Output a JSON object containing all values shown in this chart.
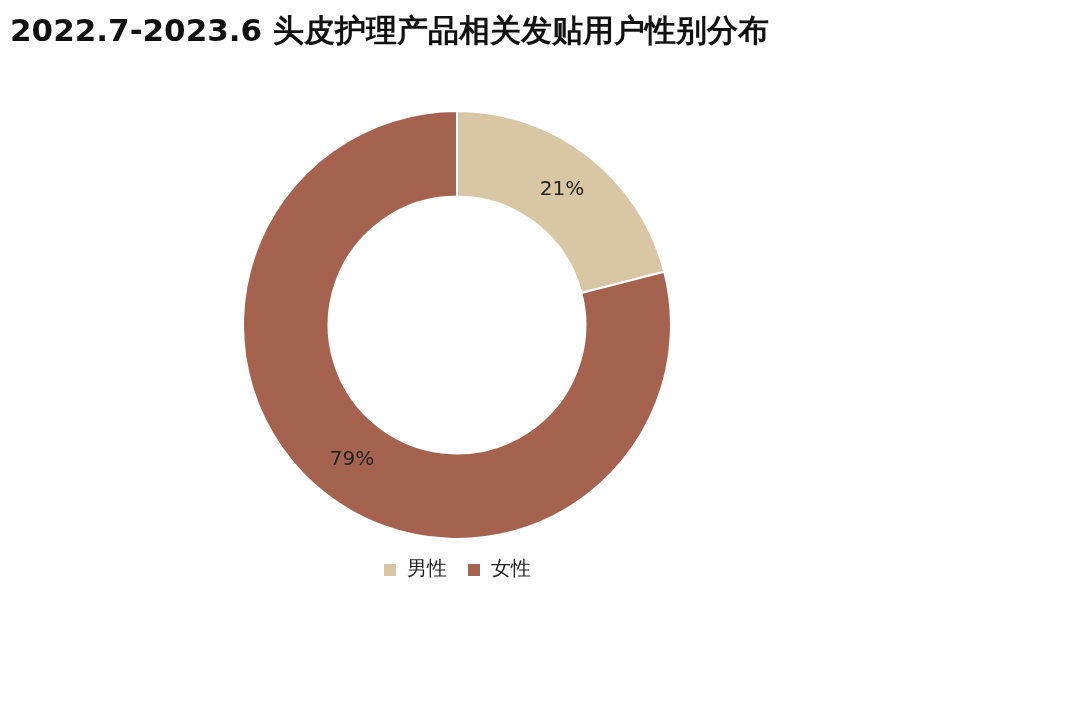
{
  "chart_data": {
    "type": "donut",
    "title": "2022.7-2023.6 头皮护理产品相关发贴用户性别分布",
    "categories": [
      "男性",
      "女性"
    ],
    "values": [
      21,
      79
    ],
    "colors": [
      "#d9c6a5",
      "#a5634f"
    ],
    "value_labels": [
      "21%",
      "79%"
    ],
    "legend": "bottom"
  }
}
